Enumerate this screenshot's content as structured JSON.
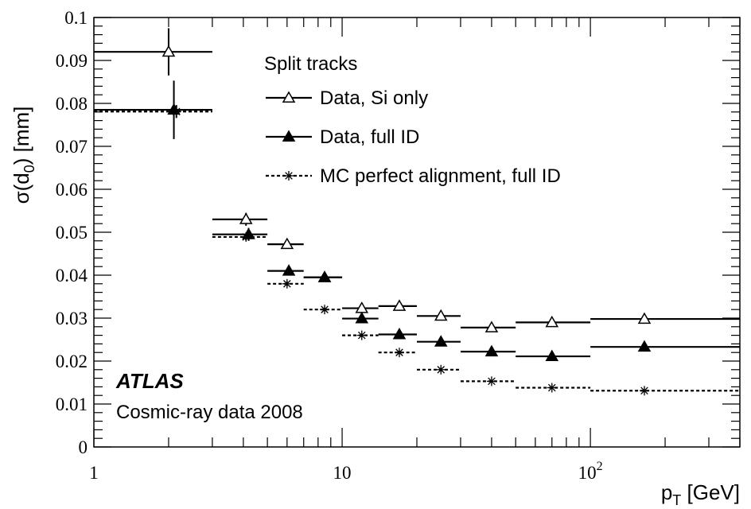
{
  "chart_data": {
    "type": "scatter",
    "title": "",
    "xlabel": "p_T [GeV]",
    "ylabel": "σ(d_0) [mm]",
    "xscale": "log",
    "xlim": [
      1,
      400
    ],
    "ylim": [
      0,
      0.1
    ],
    "x_ticks": [
      {
        "value": 1,
        "label": "1"
      },
      {
        "value": 10,
        "label": "10"
      },
      {
        "value": 100,
        "label": "10",
        "exponent": "2"
      }
    ],
    "y_ticks": [
      {
        "value": 0,
        "label": "0"
      },
      {
        "value": 0.01,
        "label": "0.01"
      },
      {
        "value": 0.02,
        "label": "0.02"
      },
      {
        "value": 0.03,
        "label": "0.03"
      },
      {
        "value": 0.04,
        "label": "0.04"
      },
      {
        "value": 0.05,
        "label": "0.05"
      },
      {
        "value": 0.06,
        "label": "0.06"
      },
      {
        "value": 0.07,
        "label": "0.07"
      },
      {
        "value": 0.08,
        "label": "0.08"
      },
      {
        "value": 0.09,
        "label": "0.09"
      },
      {
        "value": 0.1,
        "label": "0.1"
      }
    ],
    "legend": {
      "title": "Split tracks",
      "position": "top-right",
      "entries": [
        {
          "label": "Data, Si only",
          "marker": "open-triangle",
          "line": "solid"
        },
        {
          "label": "Data, full ID",
          "marker": "filled-triangle",
          "line": "solid"
        },
        {
          "label": "MC perfect alignment, full ID",
          "marker": "asterisk",
          "line": "dashed"
        }
      ]
    },
    "annotations": {
      "experiment": "ATLAS",
      "dataset": "Cosmic-ray data 2008"
    },
    "series": [
      {
        "name": "Data, Si only",
        "marker": "open-triangle",
        "line": "solid",
        "points": [
          {
            "x": 2,
            "xlo": 1,
            "xhi": 3,
            "y": 0.092,
            "err": 0.0055
          },
          {
            "x": 4.1,
            "xlo": 3,
            "xhi": 5,
            "y": 0.053,
            "err": 0.0015
          },
          {
            "x": 6,
            "xlo": 5,
            "xhi": 7,
            "y": 0.0472,
            "err": 0.001
          },
          {
            "x": 8.5,
            "xlo": 7,
            "xhi": 10,
            "y": 0.0395,
            "err": 0.0008
          },
          {
            "x": 12,
            "xlo": 10,
            "xhi": 14,
            "y": 0.0323,
            "err": 0.0006
          },
          {
            "x": 17,
            "xlo": 14,
            "xhi": 20,
            "y": 0.0328,
            "err": 0.0006
          },
          {
            "x": 25,
            "xlo": 20,
            "xhi": 30,
            "y": 0.0305,
            "err": 0.0006
          },
          {
            "x": 40,
            "xlo": 30,
            "xhi": 50,
            "y": 0.0278,
            "err": 0.0006
          },
          {
            "x": 70,
            "xlo": 50,
            "xhi": 100,
            "y": 0.029,
            "err": 0.0007
          },
          {
            "x": 165,
            "xlo": 100,
            "xhi": 400,
            "y": 0.0298,
            "err": 0.001
          }
        ]
      },
      {
        "name": "Data, full ID",
        "marker": "filled-triangle",
        "line": "solid",
        "points": [
          {
            "x": 2.1,
            "xlo": 1,
            "xhi": 3,
            "y": 0.0785,
            "err": 0.0068
          },
          {
            "x": 4.2,
            "xlo": 3,
            "xhi": 5,
            "y": 0.0495,
            "err": 0.0015
          },
          {
            "x": 6.1,
            "xlo": 5,
            "xhi": 7,
            "y": 0.041,
            "err": 0.001
          },
          {
            "x": 8.5,
            "xlo": 7,
            "xhi": 10,
            "y": 0.0395,
            "err": 0.0008
          },
          {
            "x": 12,
            "xlo": 10,
            "xhi": 14,
            "y": 0.0299,
            "err": 0.0006
          },
          {
            "x": 17,
            "xlo": 14,
            "xhi": 20,
            "y": 0.0262,
            "err": 0.0005
          },
          {
            "x": 25,
            "xlo": 20,
            "xhi": 30,
            "y": 0.0245,
            "err": 0.0005
          },
          {
            "x": 40,
            "xlo": 30,
            "xhi": 50,
            "y": 0.0222,
            "err": 0.0005
          },
          {
            "x": 70,
            "xlo": 50,
            "xhi": 100,
            "y": 0.0211,
            "err": 0.0005
          },
          {
            "x": 165,
            "xlo": 100,
            "xhi": 400,
            "y": 0.0233,
            "err": 0.0006
          }
        ]
      },
      {
        "name": "MC perfect alignment, full ID",
        "marker": "asterisk",
        "line": "dashed",
        "points": [
          {
            "x": 2.15,
            "xlo": 1,
            "xhi": 3,
            "y": 0.0781,
            "err": 0.0015
          },
          {
            "x": 4.1,
            "xlo": 3,
            "xhi": 5,
            "y": 0.0489,
            "err": 0.0008
          },
          {
            "x": 6,
            "xlo": 5,
            "xhi": 7,
            "y": 0.038,
            "err": 0.0005
          },
          {
            "x": 8.5,
            "xlo": 7,
            "xhi": 10,
            "y": 0.032,
            "err": 0.0004
          },
          {
            "x": 12,
            "xlo": 10,
            "xhi": 14,
            "y": 0.026,
            "err": 0.0004
          },
          {
            "x": 17,
            "xlo": 14,
            "xhi": 20,
            "y": 0.022,
            "err": 0.0004
          },
          {
            "x": 25,
            "xlo": 20,
            "xhi": 30,
            "y": 0.018,
            "err": 0.0004
          },
          {
            "x": 40,
            "xlo": 30,
            "xhi": 50,
            "y": 0.0153,
            "err": 0.0003
          },
          {
            "x": 70,
            "xlo": 50,
            "xhi": 100,
            "y": 0.0138,
            "err": 0.0003
          },
          {
            "x": 165,
            "xlo": 100,
            "xhi": 400,
            "y": 0.0131,
            "err": 0.0003
          }
        ]
      }
    ]
  }
}
